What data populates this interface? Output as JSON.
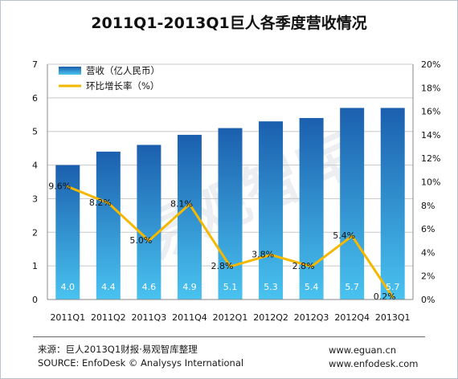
{
  "chart_data": {
    "type": "bar+line",
    "title": "2011Q1-2013Q1巨人各季度营收情况",
    "categories": [
      "2011Q1",
      "2011Q2",
      "2011Q3",
      "2011Q4",
      "2012Q1",
      "2012Q2",
      "2012Q3",
      "2012Q4",
      "2013Q1"
    ],
    "series": [
      {
        "name": "营收（亿人民币）",
        "type": "bar",
        "axis": "left",
        "values": [
          4.0,
          4.4,
          4.6,
          4.9,
          5.1,
          5.3,
          5.4,
          5.7,
          5.7
        ],
        "labels": [
          "4.0",
          "4.4",
          "4.6",
          "4.9",
          "5.1",
          "5.3",
          "5.4",
          "5.7",
          "5.7"
        ],
        "color": "#2a7cc8"
      },
      {
        "name": "环比增长率（%）",
        "type": "line",
        "axis": "right",
        "values": [
          9.6,
          8.2,
          5.0,
          8.1,
          2.8,
          3.8,
          2.8,
          5.4,
          0.2
        ],
        "labels": [
          "9.6%",
          "8.2%",
          "5.0%",
          "8.1%",
          "2.8%",
          "3.8%",
          "2.8%",
          "5.4%",
          "0.2%"
        ],
        "color": "#f5b800"
      }
    ],
    "left_axis": {
      "ylim": [
        0,
        7
      ],
      "ticks": [
        "0",
        "1",
        "2",
        "3",
        "4",
        "5",
        "6",
        "7"
      ]
    },
    "right_axis": {
      "ylim": [
        0,
        20
      ],
      "ticks": [
        "0%",
        "2%",
        "4%",
        "6%",
        "8%",
        "10%",
        "12%",
        "14%",
        "16%",
        "18%",
        "20%"
      ]
    },
    "grid": true,
    "legend_position": "top-left",
    "watermark": "易观智库"
  },
  "footer": {
    "source_cn": "来源：巨人2013Q1财报·易观智库整理",
    "source_en": "SOURCE: EnfoDesk ©  Analysys International",
    "url1": "www.eguan.cn",
    "url2": "www.enfodesk.com"
  },
  "colors": {
    "bar_top": "#1b5fae",
    "bar_bottom": "#49c3f0",
    "line": "#f5b800",
    "grid": "#c8c8c8"
  }
}
